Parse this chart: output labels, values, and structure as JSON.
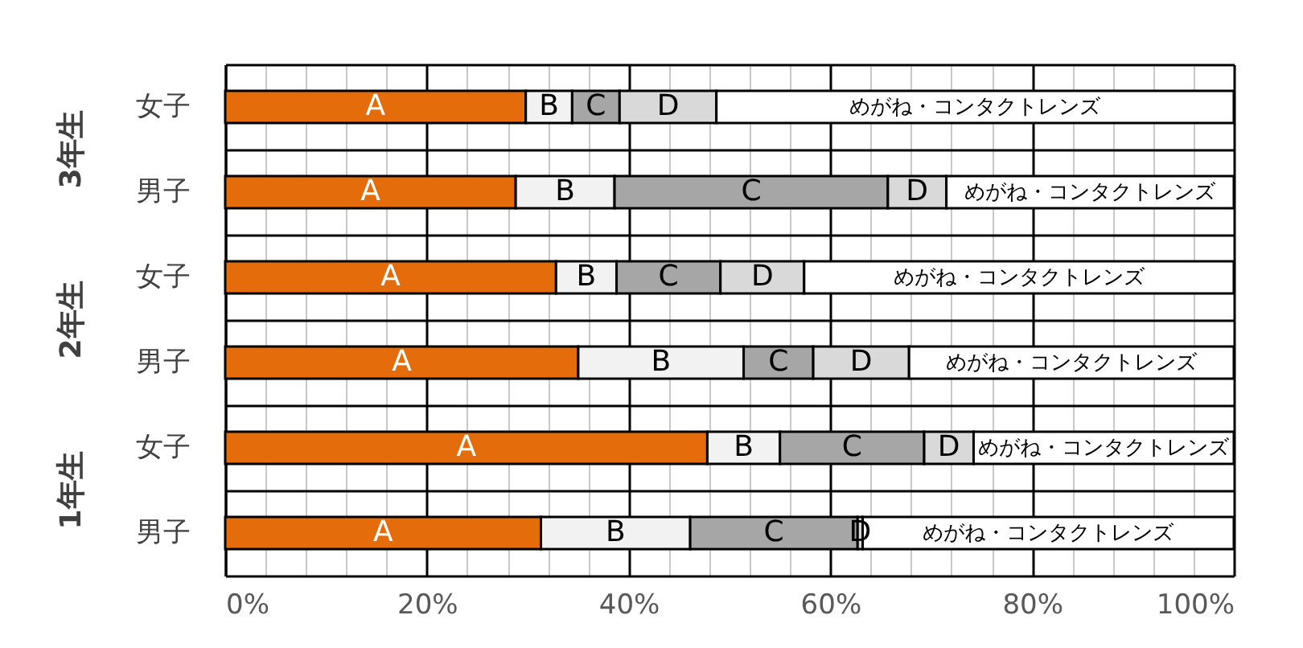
{
  "chart_data": {
    "type": "bar",
    "orientation": "horizontal",
    "stacked": true,
    "categories": [
      "女子",
      "男子",
      "女子",
      "男子",
      "女子",
      "男子"
    ],
    "annotations": [
      "3年生",
      "2年生",
      "1年生"
    ],
    "series": [
      {
        "name": "A",
        "color": "#e46c0a",
        "values": [
          29.8,
          28.8,
          32.8,
          35.0,
          47.8,
          31.3
        ]
      },
      {
        "name": "B",
        "color": "#f2f2f2",
        "values": [
          4.6,
          9.8,
          6.0,
          16.4,
          7.2,
          14.8
        ]
      },
      {
        "name": "C",
        "color": "#a6a6a6",
        "values": [
          4.7,
          27.1,
          10.3,
          6.9,
          14.3,
          16.6
        ]
      },
      {
        "name": "D",
        "color": "#d9d9d9",
        "values": [
          9.6,
          5.8,
          8.3,
          9.5,
          4.9,
          0.5
        ]
      },
      {
        "name": "めがね・コンタクトレンズ",
        "color": "#ffffff",
        "values": [
          51.3,
          28.5,
          42.6,
          32.2,
          25.8,
          36.8
        ]
      }
    ],
    "xlim": [
      0,
      100
    ],
    "xticks": [
      {
        "value": 0,
        "label": "0%"
      },
      {
        "value": 4,
        "label": null
      },
      {
        "value": 8,
        "label": null
      },
      {
        "value": 12,
        "label": null
      },
      {
        "value": 16,
        "label": null
      },
      {
        "value": 20,
        "label": "20%"
      },
      {
        "value": 24,
        "label": null
      },
      {
        "value": 28,
        "label": null
      },
      {
        "value": 32,
        "label": null
      },
      {
        "value": 36,
        "label": null
      },
      {
        "value": 40,
        "label": "40%"
      },
      {
        "value": 44,
        "label": null
      },
      {
        "value": 48,
        "label": null
      },
      {
        "value": 52,
        "label": null
      },
      {
        "value": 56,
        "label": null
      },
      {
        "value": 60,
        "label": "60%"
      },
      {
        "value": 64,
        "label": null
      },
      {
        "value": 68,
        "label": null
      },
      {
        "value": 72,
        "label": null
      },
      {
        "value": 76,
        "label": null
      },
      {
        "value": 80,
        "label": "80%"
      },
      {
        "value": 84,
        "label": null
      },
      {
        "value": 88,
        "label": null
      },
      {
        "value": 92,
        "label": null
      },
      {
        "value": 96,
        "label": null
      },
      {
        "value": 100,
        "label": "100%"
      }
    ],
    "grid": true,
    "legend": false
  }
}
